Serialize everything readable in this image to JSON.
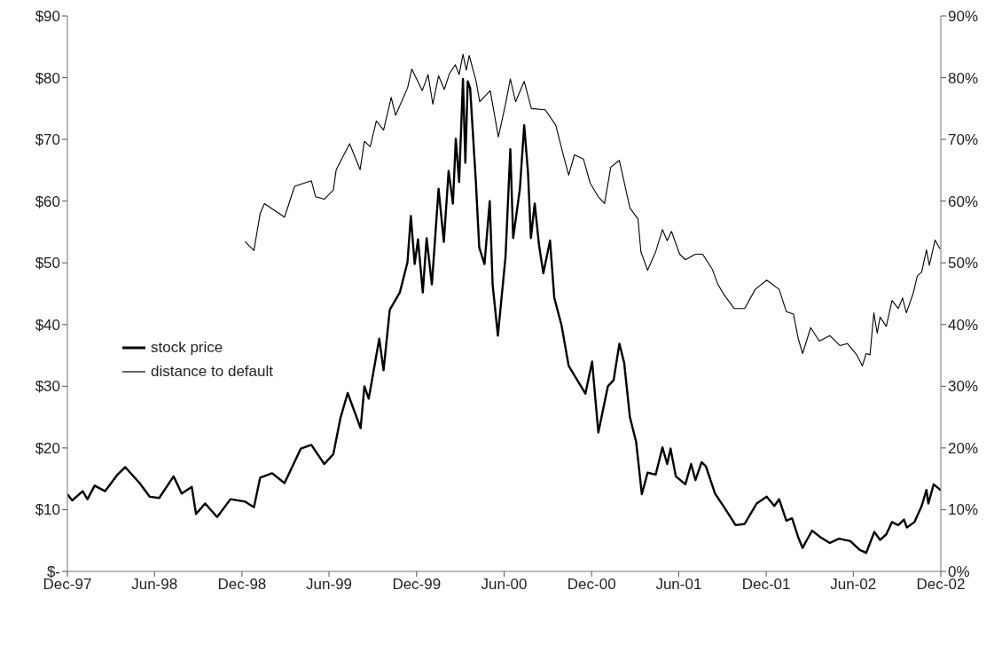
{
  "chart_data": {
    "type": "line",
    "legend": "left",
    "xlim": [
      "1997-12-01",
      "2002-12-01"
    ],
    "xticks": [
      {
        "value": "1997-12-01",
        "label": "Dec-97"
      },
      {
        "value": "1998-06-01",
        "label": "Jun-98"
      },
      {
        "value": "1998-12-01",
        "label": "Dec-98"
      },
      {
        "value": "1999-06-01",
        "label": "Jun-99"
      },
      {
        "value": "1999-12-01",
        "label": "Dec-99"
      },
      {
        "value": "2000-06-01",
        "label": "Jun-00"
      },
      {
        "value": "2000-12-01",
        "label": "Dec-00"
      },
      {
        "value": "2001-06-01",
        "label": "Jun-01"
      },
      {
        "value": "2001-12-01",
        "label": "Dec-01"
      },
      {
        "value": "2002-06-01",
        "label": "Jun-02"
      },
      {
        "value": "2002-12-01",
        "label": "Dec-02"
      }
    ],
    "ylim": [
      0,
      90
    ],
    "yticks": [
      {
        "value": 0,
        "label": "$-"
      },
      {
        "value": 10,
        "label": "$10"
      },
      {
        "value": 20,
        "label": "$20"
      },
      {
        "value": 30,
        "label": "$30"
      },
      {
        "value": 40,
        "label": "$40"
      },
      {
        "value": 50,
        "label": "$50"
      },
      {
        "value": 60,
        "label": "$60"
      },
      {
        "value": 70,
        "label": "$70"
      },
      {
        "value": 80,
        "label": "$80"
      },
      {
        "value": 90,
        "label": "$90"
      }
    ],
    "y2lim": [
      0,
      90
    ],
    "y2ticks": [
      {
        "value": 0,
        "label": "0%"
      },
      {
        "value": 10,
        "label": "10%"
      },
      {
        "value": 20,
        "label": "20%"
      },
      {
        "value": 30,
        "label": "30%"
      },
      {
        "value": 40,
        "label": "40%"
      },
      {
        "value": 50,
        "label": "50%"
      },
      {
        "value": 60,
        "label": "60%"
      },
      {
        "value": 70,
        "label": "70%"
      },
      {
        "value": 80,
        "label": "80%"
      },
      {
        "value": 90,
        "label": "90%"
      }
    ],
    "series": [
      {
        "name": "stock price",
        "color": "#000000",
        "x": [
          "1997-12-02",
          "1997-12-11",
          "1998-01-02",
          "1998-01-12",
          "1998-01-27",
          "1998-02-18",
          "1998-03-16",
          "1998-04-01",
          "1998-05-01",
          "1998-05-22",
          "1998-06-11",
          "1998-07-11",
          "1998-07-28",
          "1998-08-18",
          "1998-08-27",
          "1998-09-15",
          "1998-10-10",
          "1998-11-07",
          "1998-12-08",
          "1998-12-26",
          "1999-01-08",
          "1999-02-02",
          "1999-02-28",
          "1999-04-03",
          "1999-04-25",
          "1999-05-22",
          "1999-06-10",
          "1999-06-25",
          "1999-07-10",
          "1999-08-06",
          "1999-08-14",
          "1999-08-23",
          "1999-09-14",
          "1999-09-23",
          "1999-10-06",
          "1999-10-27",
          "1999-11-12",
          "1999-11-19",
          "1999-11-27",
          "1999-12-04",
          "1999-12-14",
          "1999-12-22",
          "2000-01-02",
          "2000-01-16",
          "2000-01-27",
          "2000-02-06",
          "2000-02-15",
          "2000-02-21",
          "2000-02-28",
          "2000-03-07",
          "2000-03-12",
          "2000-03-17",
          "2000-03-22",
          "2000-04-03",
          "2000-04-10",
          "2000-04-21",
          "2000-05-02",
          "2000-05-08",
          "2000-05-19",
          "2000-06-04",
          "2000-06-14",
          "2000-06-20",
          "2000-07-04",
          "2000-07-13",
          "2000-07-21",
          "2000-07-27",
          "2000-08-04",
          "2000-08-13",
          "2000-08-22",
          "2000-09-05",
          "2000-09-14",
          "2000-09-29",
          "2000-10-14",
          "2000-11-18",
          "2000-12-02",
          "2000-12-15",
          "2001-01-04",
          "2001-01-16",
          "2001-01-28",
          "2001-02-07",
          "2001-02-19",
          "2001-03-04",
          "2001-03-16",
          "2001-03-28",
          "2001-04-14",
          "2001-04-28",
          "2001-05-08",
          "2001-05-15",
          "2001-05-26",
          "2001-06-15",
          "2001-06-27",
          "2001-07-06",
          "2001-07-19",
          "2001-07-28",
          "2001-08-16",
          "2001-09-04",
          "2001-09-28",
          "2001-10-17",
          "2001-11-11",
          "2001-12-02",
          "2001-12-18",
          "2001-12-28",
          "2002-01-12",
          "2002-01-24",
          "2002-02-06",
          "2002-02-15",
          "2002-02-24",
          "2002-03-07",
          "2002-03-25",
          "2002-04-13",
          "2002-05-02",
          "2002-05-26",
          "2002-06-14",
          "2002-06-28",
          "2002-07-15",
          "2002-07-27",
          "2002-08-09",
          "2002-08-21",
          "2002-09-03",
          "2002-09-15",
          "2002-09-21",
          "2002-10-07",
          "2002-10-22",
          "2002-11-01",
          "2002-11-05",
          "2002-11-16",
          "2002-11-30"
        ],
        "values": [
          12.4,
          11.5,
          13.0,
          11.7,
          13.9,
          13.0,
          15.7,
          16.9,
          14.3,
          12.1,
          11.9,
          15.4,
          12.6,
          13.7,
          9.3,
          11.0,
          8.8,
          11.7,
          11.3,
          10.4,
          15.2,
          15.9,
          14.3,
          19.9,
          20.5,
          17.4,
          19.0,
          24.9,
          28.9,
          23.2,
          30.0,
          28.0,
          37.7,
          32.6,
          42.4,
          45.2,
          50.1,
          57.6,
          49.8,
          53.8,
          45.2,
          54.0,
          46.5,
          62.0,
          53.4,
          64.9,
          59.6,
          70.1,
          63.1,
          79.8,
          66.2,
          79.4,
          78.3,
          63.1,
          52.5,
          49.8,
          60.0,
          46.5,
          38.2,
          51.0,
          68.4,
          54.0,
          62.0,
          72.3,
          64.6,
          54.0,
          59.6,
          52.9,
          48.3,
          53.6,
          44.3,
          39.9,
          33.3,
          28.8,
          34,
          22.5,
          30,
          31,
          36.9,
          33.8,
          25,
          21,
          12.5,
          16,
          15.7,
          20.1,
          17.4,
          19.9,
          15.4,
          14.1,
          17.4,
          14.8,
          17.7,
          17.0,
          12.6,
          10.4,
          7.5,
          7.7,
          11.0,
          12.1,
          10.6,
          11.7,
          8.2,
          8.6,
          5.5,
          3.8,
          5.1,
          6.6,
          5.5,
          4.6,
          5.3,
          4.9,
          3.5,
          3.0,
          6.4,
          5.1,
          6.0,
          8.0,
          7.5,
          8.4,
          7.1,
          8.0,
          10.6,
          13.2,
          11.0,
          14.1,
          13.2
        ]
      },
      {
        "name": "distance to default",
        "color": "#000000",
        "axis": "y2",
        "x": [
          "1998-12-08",
          "1998-12-26",
          "1999-01-08",
          "1999-01-17",
          "1999-02-28",
          "1999-03-21",
          "1999-04-25",
          "1999-05-04",
          "1999-05-22",
          "1999-06-10",
          "1999-06-16",
          "1999-07-14",
          "1999-08-05",
          "1999-08-14",
          "1999-08-26",
          "1999-09-08",
          "1999-09-23",
          "1999-10-09",
          "1999-10-18",
          "1999-11-12",
          "1999-11-21",
          "1999-12-13",
          "1999-12-25",
          "2000-01-04",
          "2000-01-16",
          "2000-01-28",
          "2000-02-08",
          "2000-02-20",
          "2000-02-28",
          "2000-03-07",
          "2000-03-14",
          "2000-03-20",
          "2000-04-03",
          "2000-04-11",
          "2000-05-03",
          "2000-05-20",
          "2000-06-04",
          "2000-06-14",
          "2000-06-25",
          "2000-07-13",
          "2000-07-28",
          "2000-08-26",
          "2000-09-17",
          "2000-10-02",
          "2000-10-14",
          "2000-10-26",
          "2000-11-14",
          "2000-11-28",
          "2000-12-15",
          "2000-12-28",
          "2001-01-10",
          "2001-01-28",
          "2001-02-19",
          "2001-03-08",
          "2001-03-14",
          "2001-03-28",
          "2001-04-14",
          "2001-04-28",
          "2001-05-08",
          "2001-05-17",
          "2001-06-03",
          "2001-06-15",
          "2001-07-06",
          "2001-07-21",
          "2001-08-10",
          "2001-08-22",
          "2001-09-04",
          "2001-09-25",
          "2001-10-17",
          "2001-11-08",
          "2001-12-02",
          "2001-12-28",
          "2002-01-12",
          "2002-01-27",
          "2002-02-06",
          "2002-02-15",
          "2002-03-04",
          "2002-03-22",
          "2002-04-13",
          "2002-05-04",
          "2002-05-20",
          "2002-06-08",
          "2002-06-20",
          "2002-06-28",
          "2002-07-06",
          "2002-07-14",
          "2002-07-21",
          "2002-07-27",
          "2002-08-09",
          "2002-08-21",
          "2002-09-03",
          "2002-09-12",
          "2002-09-20",
          "2002-10-04",
          "2002-10-13",
          "2002-10-22",
          "2002-11-01",
          "2002-11-07",
          "2002-11-19",
          "2002-11-29"
        ],
        "values": [
          53.4,
          52.0,
          58.0,
          59.6,
          57.4,
          62.4,
          63.3,
          60.7,
          60.3,
          61.8,
          65.1,
          69.3,
          65.1,
          69.7,
          68.8,
          73.0,
          71.5,
          76.8,
          73.9,
          78.3,
          81.4,
          77.9,
          80.5,
          75.7,
          80.3,
          78.1,
          80.7,
          82.1,
          80.5,
          83.8,
          81.2,
          83.6,
          79.6,
          76.1,
          77.9,
          70.4,
          75.7,
          79.8,
          76.1,
          79.4,
          75.0,
          74.8,
          72.3,
          67.7,
          64.2,
          67.5,
          66.8,
          62.9,
          60.7,
          59.6,
          65.5,
          66.6,
          58.9,
          57.1,
          51.8,
          48.8,
          51.8,
          55.4,
          53.6,
          55.1,
          51.4,
          50.5,
          51.4,
          51.4,
          49.0,
          46.5,
          44.8,
          42.6,
          42.6,
          45.7,
          47.2,
          45.7,
          42.1,
          41.7,
          37.7,
          35.3,
          39.5,
          37.3,
          38.2,
          36.6,
          36.9,
          35.1,
          33.3,
          35.3,
          35.1,
          41.9,
          38.6,
          41.2,
          39.7,
          43.9,
          42.6,
          44.3,
          41.9,
          45.0,
          47.9,
          48.5,
          52.1,
          49.6,
          53.7,
          52.3
        ]
      }
    ]
  }
}
